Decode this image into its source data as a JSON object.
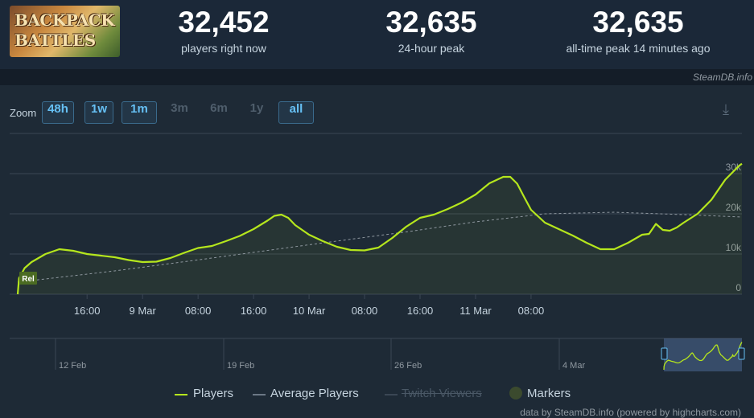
{
  "game": {
    "logo_line1": "BACKPACK",
    "logo_line2": "BATTLES"
  },
  "stats": [
    {
      "value": "32,452",
      "label": "players right now"
    },
    {
      "value": "32,635",
      "label": "24-hour peak"
    },
    {
      "value": "32,635",
      "label": "all-time peak 14 minutes ago"
    }
  ],
  "credit_top": "SteamDB.info",
  "zoom": {
    "label": "Zoom",
    "buttons": [
      {
        "label": "48h",
        "active": true
      },
      {
        "label": "1w",
        "active": true
      },
      {
        "label": "1m",
        "active": true
      },
      {
        "label": "3m",
        "active": false
      },
      {
        "label": "6m",
        "active": false
      },
      {
        "label": "1y",
        "active": false
      },
      {
        "label": "all",
        "active": true
      }
    ]
  },
  "chart_data": {
    "type": "line",
    "title": "",
    "xlabel": "",
    "ylabel": "",
    "ylim": [
      0,
      40000
    ],
    "yticks": [
      0,
      10000,
      20000,
      30000
    ],
    "ytick_labels": [
      "0",
      "10k",
      "20k",
      "30k"
    ],
    "xlim": [
      "8 Mar 06:00",
      "11 Mar 16:00"
    ],
    "xticks": [
      {
        "label": "16:00",
        "t": "8 Mar 16:00"
      },
      {
        "label": "9 Mar",
        "t": "9 Mar 00:00"
      },
      {
        "label": "08:00",
        "t": "9 Mar 08:00"
      },
      {
        "label": "16:00",
        "t": "9 Mar 16:00"
      },
      {
        "label": "10 Mar",
        "t": "10 Mar 00:00"
      },
      {
        "label": "08:00",
        "t": "10 Mar 08:00"
      },
      {
        "label": "16:00",
        "t": "10 Mar 16:00"
      },
      {
        "label": "11 Mar",
        "t": "11 Mar 00:00"
      },
      {
        "label": "08:00",
        "t": "11 Mar 08:00"
      }
    ],
    "grid": true,
    "legend_position": "bottom-center",
    "marker": {
      "label": "Rel",
      "t": "8 Mar 06:00"
    },
    "series": [
      {
        "name": "Players",
        "color": "#b5e61d",
        "points": [
          [
            6.0,
            0
          ],
          [
            6.2,
            4000
          ],
          [
            7.0,
            6500
          ],
          [
            8.0,
            8000
          ],
          [
            10.0,
            10000
          ],
          [
            12.0,
            11200
          ],
          [
            14.0,
            10800
          ],
          [
            16.0,
            10000
          ],
          [
            18.0,
            9600
          ],
          [
            20.0,
            9200
          ],
          [
            22.0,
            8500
          ],
          [
            24.0,
            8000
          ],
          [
            26.0,
            8100
          ],
          [
            28.0,
            9000
          ],
          [
            30.0,
            10300
          ],
          [
            32.0,
            11500
          ],
          [
            34.0,
            12000
          ],
          [
            36.0,
            13200
          ],
          [
            38.0,
            14500
          ],
          [
            40.0,
            16200
          ],
          [
            42.0,
            18300
          ],
          [
            43.0,
            19500
          ],
          [
            44.0,
            19800
          ],
          [
            45.0,
            19000
          ],
          [
            46.0,
            17200
          ],
          [
            48.0,
            14800
          ],
          [
            50.0,
            13200
          ],
          [
            52.0,
            11800
          ],
          [
            54.0,
            11000
          ],
          [
            56.0,
            10900
          ],
          [
            58.0,
            11600
          ],
          [
            60.0,
            14000
          ],
          [
            62.0,
            16800
          ],
          [
            64.0,
            19000
          ],
          [
            66.0,
            19800
          ],
          [
            68.0,
            21200
          ],
          [
            70.0,
            22800
          ],
          [
            72.0,
            24800
          ],
          [
            74.0,
            27600
          ],
          [
            76.0,
            29200
          ],
          [
            77.0,
            29200
          ],
          [
            78.0,
            27500
          ],
          [
            79.0,
            24200
          ],
          [
            80.0,
            21000
          ],
          [
            82.0,
            17800
          ],
          [
            84.0,
            16200
          ],
          [
            86.0,
            14600
          ],
          [
            88.0,
            12800
          ],
          [
            90.0,
            11200
          ],
          [
            92.0,
            11200
          ],
          [
            94.0,
            12800
          ],
          [
            96.0,
            14800
          ],
          [
            97.0,
            15000
          ],
          [
            98.0,
            17500
          ],
          [
            99.0,
            16000
          ],
          [
            100.0,
            15800
          ],
          [
            101.0,
            16600
          ],
          [
            102.0,
            17800
          ],
          [
            104.0,
            20000
          ],
          [
            106.0,
            23500
          ],
          [
            108.0,
            28500
          ],
          [
            110.0,
            32000
          ],
          [
            110.4,
            32452
          ]
        ]
      },
      {
        "name": "Average Players",
        "color": "#8f98a0",
        "points": [
          [
            6.0,
            3000
          ],
          [
            20.0,
            5800
          ],
          [
            34.0,
            9000
          ],
          [
            48.0,
            12300
          ],
          [
            62.0,
            15500
          ],
          [
            72.0,
            18000
          ],
          [
            82.0,
            20000
          ],
          [
            92.0,
            20400
          ],
          [
            102.0,
            19800
          ],
          [
            110.4,
            19200
          ]
        ]
      },
      {
        "name": "Twitch Viewers",
        "color": "#4a5866",
        "hidden": true,
        "points": []
      }
    ],
    "navigator": {
      "labels": [
        "12 Feb",
        "19 Feb",
        "26 Feb",
        "4 Mar"
      ],
      "selected_range_label": "48h"
    }
  },
  "legend": {
    "players": "Players",
    "average": "Average Players",
    "twitch": "Twitch Viewers",
    "markers": "Markers"
  },
  "credit_bottom": "data by SteamDB.info (powered by highcharts.com)",
  "colors": {
    "accent": "#66c0f4",
    "players": "#b5e61d",
    "background": "#1b2838"
  }
}
